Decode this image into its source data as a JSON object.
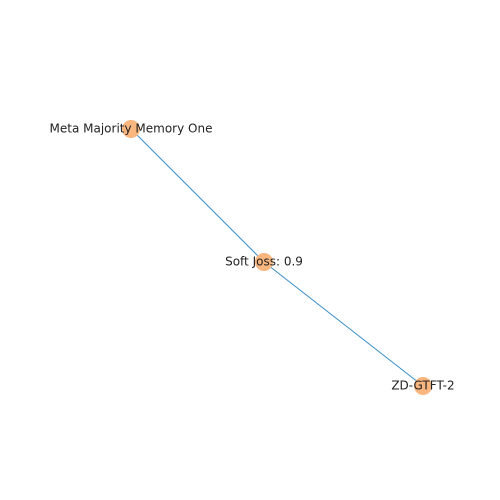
{
  "graph": {
    "colors": {
      "node": "#f9b67f",
      "edge": "#3a8ec8",
      "label": "#222222"
    },
    "nodes": [
      {
        "id": "mmmo",
        "label": "Meta Majority Memory One"
      },
      {
        "id": "soft",
        "label": "Soft Joss: 0.9"
      },
      {
        "id": "zd",
        "label": "ZD-GTFT-2"
      }
    ],
    "edges": [
      {
        "source": "mmmo",
        "target": "soft"
      },
      {
        "source": "soft",
        "target": "zd"
      }
    ]
  }
}
